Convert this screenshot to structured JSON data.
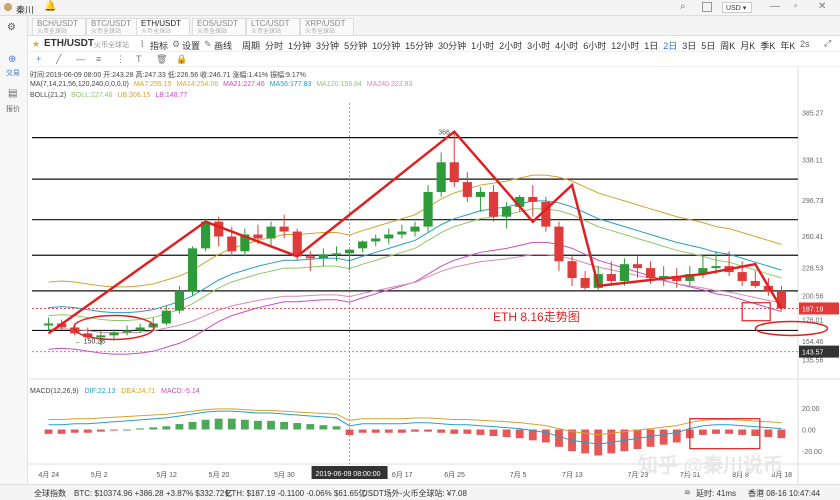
{
  "topbar": {
    "user": "秦川",
    "currency": "USD"
  },
  "sidebar": {
    "trade_label": "交易",
    "market_label": "报价"
  },
  "tabs": [
    {
      "title": "BCH/USDT",
      "sub": "火币全球站"
    },
    {
      "title": "BTC/USDT",
      "sub": "火币全球站"
    },
    {
      "title": "ETH/USDT",
      "sub": "火币全球站"
    },
    {
      "title": "EOS/USDT",
      "sub": "火币全球站"
    },
    {
      "title": "LTC/USDT",
      "sub": "火币全球站"
    },
    {
      "title": "XRP/USDT",
      "sub": "火币全球站"
    }
  ],
  "toolbar": {
    "symbol": "ETH/USDT",
    "exchange": "火币全球站",
    "indicator": "指标",
    "settings": "设置",
    "drawing": "画线",
    "periods": [
      "周期",
      "分时",
      "1分钟",
      "3分钟",
      "5分钟",
      "10分钟",
      "15分钟",
      "30分钟",
      "1小时",
      "2小时",
      "3小时",
      "4小时",
      "6小时",
      "12小时",
      "1日",
      "2日",
      "3日",
      "5日",
      "周K",
      "月K",
      "季K",
      "年K"
    ],
    "active_period": "2日",
    "interval": "2s"
  },
  "info": {
    "ohlc": "时间:2019-06-09 08:00  开:243.28  高:247.33  低:226.56  收:246.71  涨幅:1.41%  振幅:9.17%",
    "ma_title": "MA(7,14,21,56,120,240,0,0,0,0)",
    "ma_values": [
      "MA7:255.15",
      "MA14:254.08",
      "MA21:227.46",
      "MA56:177.83",
      "MA120:158.84",
      "MA240:322.83"
    ],
    "boll_title": "BOLL(21,2)",
    "boll_values": [
      "BOLL:227.46",
      "UB:306.15",
      "LB:148.77"
    ]
  },
  "annotations": {
    "title": "ETH 8.16走势图",
    "high_marker": "366",
    "low_marker": "150.28"
  },
  "price_axis": [
    "385.27",
    "338.11",
    "296.73",
    "260.41",
    "228.53",
    "200.56",
    "176.01",
    "154.46",
    "135.56"
  ],
  "price_tags": {
    "current": "187.19",
    "crosshair": "143.57"
  },
  "macd": {
    "title": "MACD(12,26,9)",
    "dif": "DIF:22.13",
    "dea": "DEA:24.71",
    "macd": "MACD:-5.14",
    "axis": [
      "20.00",
      "0.00",
      "-20.00"
    ]
  },
  "time_axis": [
    "4月 24",
    "5月 2",
    "5月 12",
    "5月 20",
    "5月 30",
    "6月 17",
    "6月 25",
    "7月 5",
    "7月 13",
    "7月 23",
    "7月 31",
    "8月 8",
    "8月 18"
  ],
  "crosshair_time": "2019-06-09 08:00:00",
  "watermark": "知乎 @秦川说币",
  "status": {
    "index": "全球指数",
    "btc": "BTC: $10374.96 +386.28 +3.87% $332.72亿",
    "eth": "ETH: $187.19 -0.1100 -0.06% $61.65亿",
    "source": "USDT场外-火币全球站: ¥7.08",
    "latency": "延时: 41ms",
    "clock": "香港 08-16 10:47:44"
  },
  "colors": {
    "up": "#2e9a3a",
    "down": "#e03b3b",
    "annotation": "#e02020"
  },
  "chart_data": [
    {
      "type": "candlestick",
      "title": "",
      "ylim": [
        128,
        395
      ],
      "x": [
        "4/24",
        "4/26",
        "4/28",
        "4/30",
        "5/2",
        "5/4",
        "5/6",
        "5/8",
        "5/10",
        "5/12",
        "5/14",
        "5/16",
        "5/18",
        "5/20",
        "5/22",
        "5/24",
        "5/26",
        "5/28",
        "5/30",
        "6/1",
        "6/3",
        "6/5",
        "6/7",
        "6/9",
        "6/11",
        "6/13",
        "6/15",
        "6/17",
        "6/19",
        "6/21",
        "6/23",
        "6/25",
        "6/27",
        "6/29",
        "7/1",
        "7/3",
        "7/5",
        "7/7",
        "7/9",
        "7/11",
        "7/13",
        "7/15",
        "7/17",
        "7/19",
        "7/21",
        "7/23",
        "7/25",
        "7/27",
        "7/29",
        "7/31",
        "8/2",
        "8/4",
        "8/6",
        "8/8",
        "8/10",
        "8/12",
        "8/14"
      ],
      "open": [
        170,
        172,
        168,
        162,
        158,
        160,
        163,
        165,
        168,
        172,
        185,
        205,
        248,
        275,
        260,
        245,
        262,
        258,
        270,
        265,
        240,
        238,
        242,
        243,
        248,
        255,
        258,
        262,
        265,
        270,
        305,
        335,
        315,
        300,
        305,
        280,
        290,
        300,
        295,
        270,
        235,
        218,
        208,
        222,
        215,
        232,
        228,
        218,
        220,
        215,
        222,
        228,
        230,
        224,
        215,
        210,
        205
      ],
      "high": [
        178,
        176,
        172,
        168,
        164,
        166,
        170,
        172,
        178,
        190,
        210,
        250,
        278,
        280,
        270,
        268,
        272,
        275,
        282,
        268,
        245,
        248,
        250,
        247,
        256,
        262,
        268,
        272,
        275,
        312,
        345,
        366,
        325,
        310,
        312,
        295,
        302,
        312,
        300,
        275,
        240,
        225,
        230,
        235,
        238,
        240,
        235,
        230,
        228,
        230,
        240,
        245,
        245,
        235,
        225,
        218,
        210
      ],
      "low": [
        165,
        166,
        160,
        156,
        150,
        155,
        160,
        162,
        165,
        170,
        182,
        200,
        245,
        250,
        240,
        240,
        252,
        250,
        258,
        236,
        225,
        230,
        235,
        226,
        244,
        250,
        252,
        258,
        260,
        265,
        300,
        310,
        295,
        285,
        275,
        268,
        285,
        280,
        265,
        225,
        210,
        205,
        205,
        210,
        210,
        218,
        212,
        210,
        208,
        210,
        218,
        222,
        220,
        210,
        208,
        200,
        185
      ],
      "close": [
        172,
        168,
        162,
        158,
        160,
        163,
        165,
        168,
        172,
        185,
        205,
        248,
        275,
        260,
        245,
        262,
        258,
        270,
        265,
        240,
        238,
        242,
        243,
        246.71,
        255,
        258,
        262,
        265,
        270,
        305,
        335,
        315,
        300,
        305,
        280,
        290,
        300,
        295,
        270,
        235,
        218,
        208,
        222,
        215,
        232,
        228,
        218,
        220,
        215,
        222,
        228,
        230,
        224,
        215,
        210,
        205,
        187.19
      ],
      "series": [
        {
          "name": "BOLL",
          "values": [
            180,
            181,
            180,
            178,
            176,
            175,
            175,
            176,
            178,
            182,
            186,
            192,
            200,
            208,
            214,
            218,
            222,
            225,
            228,
            228,
            229,
            230,
            230,
            227.46,
            232,
            236,
            240,
            244,
            248,
            256,
            264,
            270,
            274,
            278,
            280,
            282,
            285,
            288,
            288,
            286,
            282,
            276,
            270,
            266,
            262,
            258,
            254,
            250,
            246,
            243,
            240,
            236,
            234,
            230,
            226,
            222,
            218
          ]
        }
      ]
    },
    {
      "type": "bar",
      "title": "MACD(12,26,9)",
      "ylim": [
        -30,
        30
      ],
      "values": [
        -4,
        -4,
        -3,
        -3,
        -2,
        -1,
        0,
        1,
        2,
        3,
        5,
        7,
        9,
        10,
        10,
        9,
        8,
        8,
        7,
        6,
        5,
        4,
        3,
        -5.14,
        -3,
        -3,
        -3,
        -3,
        -2,
        -2,
        -3,
        -4,
        -4,
        -5,
        -6,
        -7,
        -8,
        -10,
        -12,
        -16,
        -20,
        -22,
        -24,
        -22,
        -20,
        -18,
        -16,
        -14,
        -12,
        -8,
        -5,
        -4,
        -4,
        -5,
        -6,
        -7,
        -8
      ]
    }
  ]
}
